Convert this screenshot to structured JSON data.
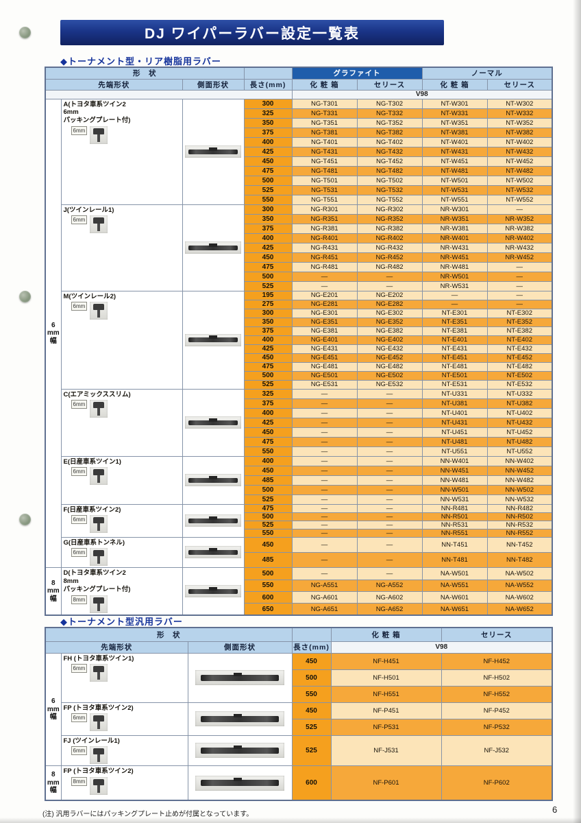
{
  "page": {
    "title": "DJ ワイパーラバー設定一覧表",
    "section1_heading": "◆トーナメント型・リア樹脂用ラバー",
    "section2_heading": "◆トーナメント型汎用ラバー",
    "footnote": "(注) 汎用ラバーにはパッキングプレート止めが付属となっています。",
    "page_number": "6"
  },
  "colors": {
    "title_bar_blue": "#1a3487",
    "header_dark_blue": "#1f5dab",
    "header_light_blue": "#b7d3eb",
    "row_orange": "#f6a83a",
    "row_cream": "#fce4b8",
    "length_orange": "#f5a01e"
  },
  "table1": {
    "headers": {
      "shape": "形　状",
      "tip": "先端形状",
      "side": "側面形状",
      "length": "長さ(mm)",
      "graphite": "グラファイト",
      "normal": "ノーマル",
      "box": "化 粧 箱",
      "series": "セリース",
      "v98": "V98"
    },
    "width_labels": [
      {
        "label": "6mm幅",
        "group_start": 0,
        "group_end": 6
      },
      {
        "label": "8mm幅",
        "group_start": 7,
        "group_end": 7
      }
    ],
    "groups": [
      {
        "id": "A",
        "label_lines": [
          "A(トヨタ車系ツイン2",
          "6mm",
          "パッキングプレート付)"
        ],
        "mm": "6mm",
        "rows": [
          [
            "300",
            "NG-T301",
            "NG-T302",
            "NT-W301",
            "NT-W302"
          ],
          [
            "325",
            "NG-T331",
            "NG-T332",
            "NT-W331",
            "NT-W332"
          ],
          [
            "350",
            "NG-T351",
            "NG-T352",
            "NT-W351",
            "NT-W352"
          ],
          [
            "375",
            "NG-T381",
            "NG-T382",
            "NT-W381",
            "NT-W382"
          ],
          [
            "400",
            "NG-T401",
            "NG-T402",
            "NT-W401",
            "NT-W402"
          ],
          [
            "425",
            "NG-T431",
            "NG-T432",
            "NT-W431",
            "NT-W432"
          ],
          [
            "450",
            "NG-T451",
            "NG-T452",
            "NT-W451",
            "NT-W452"
          ],
          [
            "475",
            "NG-T481",
            "NG-T482",
            "NT-W481",
            "NT-W482"
          ],
          [
            "500",
            "NG-T501",
            "NG-T502",
            "NT-W501",
            "NT-W502"
          ],
          [
            "525",
            "NG-T531",
            "NG-T532",
            "NT-W531",
            "NT-W532"
          ],
          [
            "550",
            "NG-T551",
            "NG-T552",
            "NT-W551",
            "NT-W552"
          ]
        ]
      },
      {
        "id": "J",
        "label_lines": [
          "J(ツインレール1)"
        ],
        "mm": "6mm",
        "rows": [
          [
            "300",
            "NG-R301",
            "NG-R302",
            "NR-W301",
            "—"
          ],
          [
            "350",
            "NG-R351",
            "NG-R352",
            "NR-W351",
            "NR-W352"
          ],
          [
            "375",
            "NG-R381",
            "NG-R382",
            "NR-W381",
            "NR-W382"
          ],
          [
            "400",
            "NG-R401",
            "NG-R402",
            "NR-W401",
            "NR-W402"
          ],
          [
            "425",
            "NG-R431",
            "NG-R432",
            "NR-W431",
            "NR-W432"
          ],
          [
            "450",
            "NG-R451",
            "NG-R452",
            "NR-W451",
            "NR-W452"
          ],
          [
            "475",
            "NG-R481",
            "NG-R482",
            "NR-W481",
            "—"
          ],
          [
            "500",
            "—",
            "—",
            "NR-W501",
            "—"
          ],
          [
            "525",
            "—",
            "—",
            "NR-W531",
            "—"
          ]
        ]
      },
      {
        "id": "M",
        "label_lines": [
          "M(ツインレール2)"
        ],
        "mm": "6mm",
        "rows": [
          [
            "195",
            "NG-E201",
            "NG-E202",
            "—",
            "—"
          ],
          [
            "275",
            "NG-E281",
            "NG-E282",
            "—",
            "—"
          ],
          [
            "300",
            "NG-E301",
            "NG-E302",
            "NT-E301",
            "NT-E302"
          ],
          [
            "350",
            "NG-E351",
            "NG-E352",
            "NT-E351",
            "NT-E352"
          ],
          [
            "375",
            "NG-E381",
            "NG-E382",
            "NT-E381",
            "NT-E382"
          ],
          [
            "400",
            "NG-E401",
            "NG-E402",
            "NT-E401",
            "NT-E402"
          ],
          [
            "425",
            "NG-E431",
            "NG-E432",
            "NT-E431",
            "NT-E432"
          ],
          [
            "450",
            "NG-E451",
            "NG-E452",
            "NT-E451",
            "NT-E452"
          ],
          [
            "475",
            "NG-E481",
            "NG-E482",
            "NT-E481",
            "NT-E482"
          ],
          [
            "500",
            "NG-E501",
            "NG-E502",
            "NT-E501",
            "NT-E502"
          ],
          [
            "525",
            "NG-E531",
            "NG-E532",
            "NT-E531",
            "NT-E532"
          ]
        ]
      },
      {
        "id": "C",
        "label_lines": [
          "C(エアミックススリム)"
        ],
        "mm": "6mm",
        "rows": [
          [
            "325",
            "—",
            "—",
            "NT-U331",
            "NT-U332"
          ],
          [
            "375",
            "—",
            "—",
            "NT-U381",
            "NT-U382"
          ],
          [
            "400",
            "—",
            "—",
            "NT-U401",
            "NT-U402"
          ],
          [
            "425",
            "—",
            "—",
            "NT-U431",
            "NT-U432"
          ],
          [
            "450",
            "—",
            "—",
            "NT-U451",
            "NT-U452"
          ],
          [
            "475",
            "—",
            "—",
            "NT-U481",
            "NT-U482"
          ],
          [
            "550",
            "—",
            "—",
            "NT-U551",
            "NT-U552"
          ]
        ]
      },
      {
        "id": "E",
        "label_lines": [
          "E(日産車系ツイン1)"
        ],
        "mm": "6mm",
        "rows": [
          [
            "400",
            "—",
            "—",
            "NN-W401",
            "NN-W402"
          ],
          [
            "450",
            "—",
            "—",
            "NN-W451",
            "NN-W452"
          ],
          [
            "485",
            "—",
            "—",
            "NN-W481",
            "NN-W482"
          ],
          [
            "500",
            "—",
            "—",
            "NN-W501",
            "NN-W502"
          ],
          [
            "525",
            "—",
            "—",
            "NN-W531",
            "NN-W532"
          ]
        ]
      },
      {
        "id": "F",
        "label_lines": [
          "F(日産車系ツイン2)"
        ],
        "mm": "6mm",
        "rows": [
          [
            "475",
            "—",
            "—",
            "NN-R481",
            "NN-R482"
          ],
          [
            "500",
            "—",
            "—",
            "NN-R501",
            "NN-R502"
          ],
          [
            "525",
            "—",
            "—",
            "NN-R531",
            "NN-R532"
          ],
          [
            "550",
            "—",
            "—",
            "NN-R551",
            "NN-R552"
          ]
        ]
      },
      {
        "id": "G",
        "label_lines": [
          "G(日産車系トンネル)"
        ],
        "mm": "6mm",
        "rows": [
          [
            "450",
            "—",
            "—",
            "NN-T451",
            "NN-T452"
          ],
          [
            "485",
            "—",
            "—",
            "NN-T481",
            "NN-T482"
          ]
        ]
      },
      {
        "id": "D",
        "label_lines": [
          "D(トヨタ車系ツイン2",
          "8mm",
          "パッキングプレート付)"
        ],
        "mm": "8mm",
        "rows": [
          [
            "500",
            "—",
            "—",
            "NA-W501",
            "NA-W502"
          ],
          [
            "550",
            "NG-A551",
            "NG-A552",
            "NA-W551",
            "NA-W552"
          ],
          [
            "600",
            "NG-A601",
            "NG-A602",
            "NA-W601",
            "NA-W602"
          ],
          [
            "650",
            "NG-A651",
            "NG-A652",
            "NA-W651",
            "NA-W652"
          ]
        ]
      }
    ]
  },
  "table2": {
    "headers": {
      "shape": "形　状",
      "tip": "先端形状",
      "side": "側面形状",
      "length": "長さ(mm)",
      "box": "化 粧 箱",
      "series": "セリース",
      "v98": "V98"
    },
    "width_labels": [
      {
        "label": "6mm幅",
        "group_start": 0,
        "group_end": 2
      },
      {
        "label": "8mm幅",
        "group_start": 3,
        "group_end": 3
      }
    ],
    "groups": [
      {
        "id": "FH",
        "label_lines": [
          "FH (トヨタ車系ツイン1)"
        ],
        "mm": "6mm",
        "rows": [
          [
            "450",
            "NF-H451",
            "NF-H452"
          ],
          [
            "500",
            "NF-H501",
            "NF-H502"
          ],
          [
            "550",
            "NF-H551",
            "NF-H552"
          ]
        ]
      },
      {
        "id": "FP",
        "label_lines": [
          "FP (トヨタ車系ツイン2)"
        ],
        "mm": "6mm",
        "rows": [
          [
            "450",
            "NF-P451",
            "NF-P452"
          ],
          [
            "525",
            "NF-P531",
            "NF-P532"
          ]
        ]
      },
      {
        "id": "FJ",
        "label_lines": [
          "FJ (ツインレール1)"
        ],
        "mm": "6mm",
        "rows": [
          [
            "525",
            "NF-J531",
            "NF-J532"
          ]
        ]
      },
      {
        "id": "FP8",
        "label_lines": [
          "FP (トヨタ車系ツイン2)"
        ],
        "mm": "8mm",
        "rows": [
          [
            "600",
            "NF-P601",
            "NF-P602"
          ]
        ]
      }
    ]
  }
}
